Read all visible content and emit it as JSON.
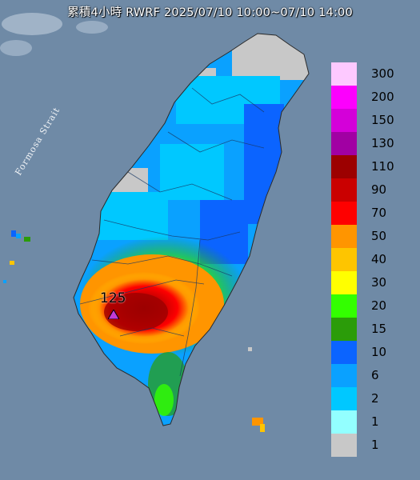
{
  "map": {
    "title": "累積4小時 RWRF 2025/07/10 10:00~07/10 14:00",
    "sea_label": "Formosa Strait",
    "max_value": "125",
    "max_marker_color": "#c13bd6",
    "sea_color": "#6f8aa6",
    "land_base_color": "#0aa1ff"
  },
  "legend": {
    "labels": [
      "300",
      "200",
      "150",
      "130",
      "110",
      "90",
      "70",
      "50",
      "40",
      "30",
      "20",
      "15",
      "10",
      "6",
      "2",
      "1",
      ""
    ],
    "colors": [
      "#fdc9ff",
      "#fc00fd",
      "#d400d9",
      "#a100a3",
      "#9c0000",
      "#ca0000",
      "#fe0000",
      "#ff9500",
      "#fec500",
      "#ffff00",
      "#33ff00",
      "#2b9c09",
      "#0b64ff",
      "#0aa1ff",
      "#00c8ff",
      "#93ffff",
      "#c8c8c8"
    ],
    "bottom_label": "1"
  },
  "icons": {
    "max_marker": "triangle-marker-icon"
  }
}
